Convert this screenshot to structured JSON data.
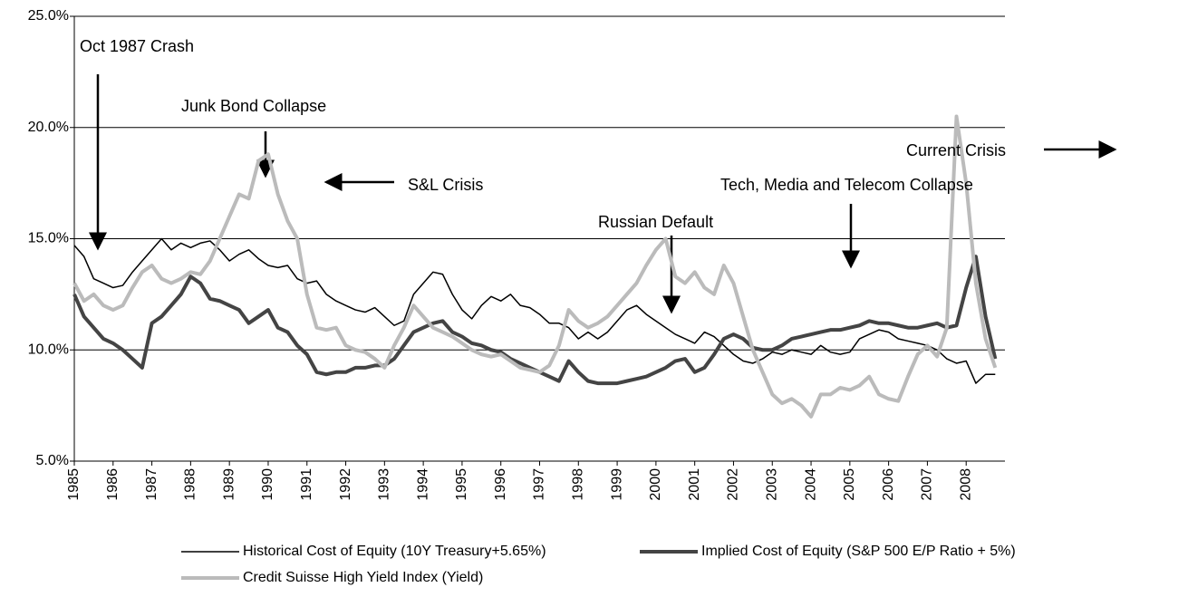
{
  "chart_data": {
    "type": "line",
    "x": [
      1985,
      1985.25,
      1985.5,
      1985.75,
      1986,
      1986.25,
      1986.5,
      1986.75,
      1987,
      1987.25,
      1987.5,
      1987.75,
      1988,
      1988.25,
      1988.5,
      1988.75,
      1989,
      1989.25,
      1989.5,
      1989.75,
      1990,
      1990.25,
      1990.5,
      1990.75,
      1991,
      1991.25,
      1991.5,
      1991.75,
      1992,
      1992.25,
      1992.5,
      1992.75,
      1993,
      1993.25,
      1993.5,
      1993.75,
      1994,
      1994.25,
      1994.5,
      1994.75,
      1995,
      1995.25,
      1995.5,
      1995.75,
      1996,
      1996.25,
      1996.5,
      1996.75,
      1997,
      1997.25,
      1997.5,
      1997.75,
      1998,
      1998.25,
      1998.5,
      1998.75,
      1999,
      1999.25,
      1999.5,
      1999.75,
      2000,
      2000.25,
      2000.5,
      2000.75,
      2001,
      2001.25,
      2001.5,
      2001.75,
      2002,
      2002.25,
      2002.5,
      2002.75,
      2003,
      2003.25,
      2003.5,
      2003.75,
      2004,
      2004.25,
      2004.5,
      2004.75,
      2005,
      2005.25,
      2005.5,
      2005.75,
      2006,
      2006.25,
      2006.5,
      2006.75,
      2007,
      2007.25,
      2007.5,
      2007.75,
      2008,
      2008.25,
      2008.5,
      2008.75
    ],
    "series": [
      {
        "name": "Historical Cost of Equity (10Y Treasury+5.65%)",
        "color": "#000000",
        "width": 1.5,
        "values": [
          14.7,
          14.2,
          13.2,
          13.0,
          12.8,
          12.9,
          13.5,
          14.0,
          14.5,
          15.0,
          14.5,
          14.8,
          14.6,
          14.8,
          14.9,
          14.5,
          14.0,
          14.3,
          14.5,
          14.1,
          13.8,
          13.7,
          13.8,
          13.2,
          13.0,
          13.1,
          12.5,
          12.2,
          12.0,
          11.8,
          11.7,
          11.9,
          11.5,
          11.1,
          11.3,
          12.5,
          13.0,
          13.5,
          13.4,
          12.5,
          11.8,
          11.4,
          12.0,
          12.4,
          12.2,
          12.5,
          12.0,
          11.9,
          11.6,
          11.2,
          11.2,
          11.0,
          10.5,
          10.8,
          10.5,
          10.8,
          11.3,
          11.8,
          12.0,
          11.6,
          11.3,
          11.0,
          10.7,
          10.5,
          10.3,
          10.8,
          10.6,
          10.2,
          9.8,
          9.5,
          9.4,
          9.6,
          9.9,
          9.8,
          10.0,
          9.9,
          9.8,
          10.2,
          9.9,
          9.8,
          9.9,
          10.5,
          10.7,
          10.9,
          10.8,
          10.5,
          10.4,
          10.3,
          10.2,
          10.0,
          9.6,
          9.4,
          9.5,
          8.5,
          8.9,
          8.9
        ]
      },
      {
        "name": "Implied Cost of Equity (S&P 500 E/P Ratio + 5%)",
        "color": "#444444",
        "width": 4,
        "values": [
          12.5,
          11.5,
          11.0,
          10.5,
          10.3,
          10.0,
          9.6,
          9.2,
          11.2,
          11.5,
          12.0,
          12.5,
          13.3,
          13.0,
          12.3,
          12.2,
          12.0,
          11.8,
          11.2,
          11.5,
          11.8,
          11.0,
          10.8,
          10.2,
          9.8,
          9.0,
          8.9,
          9.0,
          9.0,
          9.2,
          9.2,
          9.3,
          9.3,
          9.6,
          10.2,
          10.8,
          11.0,
          11.2,
          11.3,
          10.8,
          10.6,
          10.3,
          10.2,
          10.0,
          9.9,
          9.6,
          9.4,
          9.2,
          9.0,
          8.8,
          8.6,
          9.5,
          9.0,
          8.6,
          8.5,
          8.5,
          8.5,
          8.6,
          8.7,
          8.8,
          9.0,
          9.2,
          9.5,
          9.6,
          9.0,
          9.2,
          9.8,
          10.5,
          10.7,
          10.5,
          10.1,
          10.0,
          10.0,
          10.2,
          10.5,
          10.6,
          10.7,
          10.8,
          10.9,
          10.9,
          11.0,
          11.1,
          11.3,
          11.2,
          11.2,
          11.1,
          11.0,
          11.0,
          11.1,
          11.2,
          11.0,
          11.1,
          12.8,
          14.2,
          11.5,
          9.6
        ]
      },
      {
        "name": "Credit Suisse High Yield Index (Yield)",
        "color": "#bbbbbb",
        "width": 4,
        "values": [
          13.0,
          12.2,
          12.5,
          12.0,
          11.8,
          12.0,
          12.8,
          13.5,
          13.8,
          13.2,
          13.0,
          13.2,
          13.5,
          13.4,
          14.0,
          15.0,
          16.0,
          17.0,
          16.8,
          18.5,
          18.8,
          17.0,
          15.8,
          15.0,
          12.5,
          11.0,
          10.9,
          11.0,
          10.2,
          10.0,
          9.9,
          9.6,
          9.2,
          10.2,
          11.0,
          12.0,
          11.5,
          11.0,
          10.8,
          10.6,
          10.3,
          10.0,
          9.8,
          9.7,
          9.8,
          9.5,
          9.2,
          9.1,
          9.0,
          9.3,
          10.2,
          11.8,
          11.3,
          11.0,
          11.2,
          11.5,
          12.0,
          12.5,
          13.0,
          13.8,
          14.5,
          15.0,
          13.3,
          13.0,
          13.5,
          12.8,
          12.5,
          13.8,
          13.0,
          11.5,
          10.0,
          9.0,
          8.0,
          7.6,
          7.8,
          7.5,
          7.0,
          8.0,
          8.0,
          8.3,
          8.2,
          8.4,
          8.8,
          8.0,
          7.8,
          7.7,
          8.8,
          9.8,
          10.2,
          9.7,
          11.0,
          20.5,
          17.5,
          13.0,
          10.5,
          9.2
        ]
      }
    ],
    "xlim": [
      1985,
      2009
    ],
    "xticks": [
      1985,
      1986,
      1987,
      1988,
      1989,
      1990,
      1991,
      1992,
      1993,
      1994,
      1995,
      1996,
      1997,
      1998,
      1999,
      2000,
      2001,
      2002,
      2003,
      2004,
      2005,
      2006,
      2007,
      2008
    ],
    "ylim": [
      5,
      25
    ],
    "yticks": [
      {
        "value": 5,
        "label": "5.0%"
      },
      {
        "value": 10,
        "label": "10.0%"
      },
      {
        "value": 15,
        "label": "15.0%"
      },
      {
        "value": 20,
        "label": "20.0%"
      },
      {
        "value": 25,
        "label": "25.0%"
      }
    ],
    "grid": true,
    "annotations": [
      "Oct 1987 Crash",
      "Junk Bond Collapse",
      "S&L Crisis",
      "Russian Default",
      "Tech, Media and Telecom Collapse",
      "Current Crisis"
    ]
  }
}
